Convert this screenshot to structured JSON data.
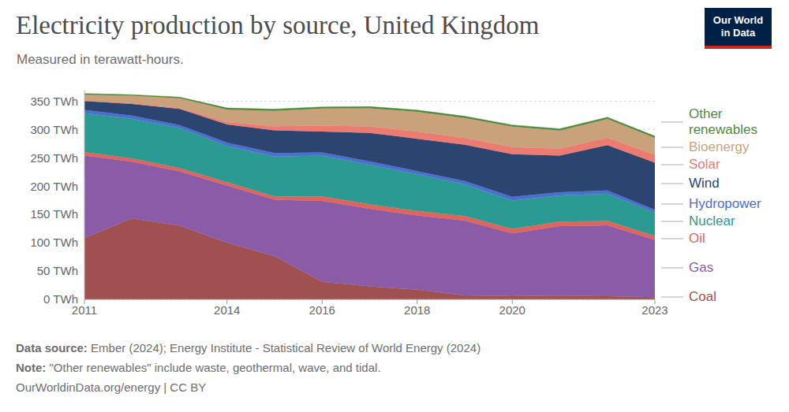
{
  "chart_data": {
    "type": "area",
    "title": "Electricity production by source, United Kingdom",
    "subtitle": "Measured in terawatt-hours.",
    "stacked": true,
    "grid": true,
    "x": [
      2011,
      2012,
      2013,
      2014,
      2015,
      2016,
      2017,
      2018,
      2019,
      2020,
      2021,
      2022,
      2023
    ],
    "xlim": [
      2011,
      2023
    ],
    "xticks": [
      2011,
      2014,
      2016,
      2018,
      2020,
      2023
    ],
    "ylim": [
      0,
      370
    ],
    "yticks": [
      {
        "value": 0,
        "label": "0 TWh"
      },
      {
        "value": 50,
        "label": "50 TWh"
      },
      {
        "value": 100,
        "label": "100 TWh"
      },
      {
        "value": 150,
        "label": "150 TWh"
      },
      {
        "value": 200,
        "label": "200 TWh"
      },
      {
        "value": 250,
        "label": "250 TWh"
      },
      {
        "value": 300,
        "label": "300 TWh"
      },
      {
        "value": 350,
        "label": "350 TWh"
      }
    ],
    "series": [
      {
        "name": "Coal",
        "color": "#a0504e",
        "values": [
          108,
          143,
          130,
          100,
          76,
          31,
          23,
          17,
          7,
          5.5,
          6.5,
          5.6,
          3.9
        ]
      },
      {
        "name": "Gas",
        "color": "#8a5ca8",
        "values": [
          146,
          100,
          96,
          101,
          100,
          143,
          137,
          131,
          132,
          111,
          123,
          125,
          101
        ]
      },
      {
        "name": "Oil",
        "color": "#e0645a",
        "values": [
          6,
          6,
          6,
          6,
          6,
          8,
          8,
          8,
          8,
          8,
          8,
          8,
          7
        ]
      },
      {
        "name": "Nuclear",
        "color": "#2a9a93",
        "values": [
          69,
          70,
          71,
          64,
          70,
          72,
          70,
          65,
          56,
          50,
          46,
          48,
          41
        ]
      },
      {
        "name": "Hydropower",
        "color": "#4a6fd0",
        "values": [
          5.7,
          5.3,
          4.7,
          5.9,
          6.3,
          5.4,
          5.9,
          5.5,
          5.9,
          6.8,
          5.5,
          5.6,
          5.4
        ]
      },
      {
        "name": "Wind",
        "color": "#2b4570",
        "values": [
          15.5,
          20.7,
          28.4,
          32,
          40,
          37,
          50,
          57,
          64,
          75,
          65,
          80,
          83
        ]
      },
      {
        "name": "Solar",
        "color": "#ec7b72",
        "values": [
          0.2,
          1.4,
          2,
          4,
          7.5,
          10.4,
          11.5,
          12.7,
          12.4,
          12.6,
          12.1,
          13.3,
          14
        ]
      },
      {
        "name": "Bioenergy",
        "color": "#c9a27c",
        "values": [
          11,
          13,
          17,
          22,
          27,
          30,
          32,
          35,
          35,
          36,
          32,
          33,
          30
        ]
      },
      {
        "name": "Other renewables",
        "color": "#4f8a3d",
        "values": [
          2,
          2,
          2,
          3,
          3,
          3,
          3,
          3,
          3,
          3,
          3,
          3,
          3
        ]
      }
    ]
  },
  "logo": "Our World in Data",
  "source_label": "Data source:",
  "source": "Ember (2024); Energy Institute - Statistical Review of World Energy (2024)",
  "note_label": "Note:",
  "note": "\"Other renewables\" include waste, geothermal, wave, and tidal.",
  "footer": "OurWorldinData.org/energy | CC BY"
}
